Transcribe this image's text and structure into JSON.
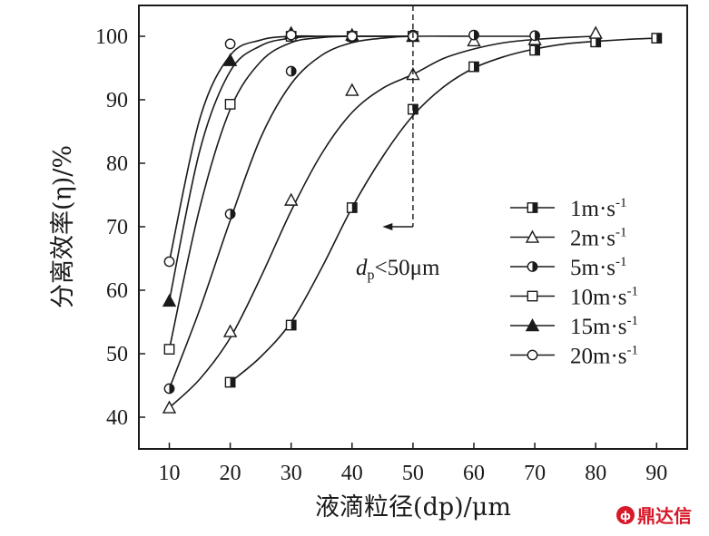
{
  "chart_data": {
    "type": "line",
    "xlabel": "液滴粒径(dp)/μm",
    "ylabel": "分离效率(η)/%",
    "xlim": [
      5,
      95
    ],
    "ylim": [
      35,
      105
    ],
    "xticks": [
      10,
      20,
      30,
      40,
      50,
      60,
      70,
      80,
      90
    ],
    "yticks": [
      40,
      50,
      60,
      70,
      80,
      90,
      100
    ],
    "grid": false,
    "legend_position": "right",
    "series": [
      {
        "name": "1m·s-1",
        "name_main": "1m·s",
        "name_sup": "-1",
        "marker": "half-square",
        "x": [
          20,
          30,
          40,
          50,
          60,
          70,
          80,
          90
        ],
        "y": [
          45.5,
          54.5,
          73,
          88.5,
          95.2,
          97.8,
          99.1,
          99.7
        ]
      },
      {
        "name": "2m·s-1",
        "name_main": "2m·s",
        "name_sup": "-1",
        "marker": "open-triangle",
        "x": [
          10,
          20,
          30,
          40,
          50,
          60,
          70,
          80
        ],
        "y": [
          41.5,
          53.5,
          74.2,
          91.5,
          94,
          99.3,
          99.5,
          100.5
        ]
      },
      {
        "name": "5m·s-1",
        "name_main": "5m·s",
        "name_sup": "-1",
        "marker": "half-circle",
        "x": [
          10,
          20,
          30,
          40,
          50,
          60,
          70
        ],
        "y": [
          44.5,
          72,
          94.5,
          99.8,
          100.2,
          100.2,
          100.1
        ]
      },
      {
        "name": "10m·s-1",
        "name_main": "10m·s",
        "name_sup": "-1",
        "marker": "open-square",
        "x": [
          10,
          20,
          30,
          40,
          50
        ],
        "y": [
          50.7,
          89.3,
          100,
          100,
          100
        ]
      },
      {
        "name": "15m·s-1",
        "name_main": "15m·s",
        "name_sup": "-1",
        "marker": "filled-triangle",
        "x": [
          10,
          20,
          30,
          40,
          50
        ],
        "y": [
          58.3,
          96.2,
          100.5,
          100.2,
          100
        ]
      },
      {
        "name": "20m·s-1",
        "name_main": "20m·s",
        "name_sup": "-1",
        "marker": "open-circle",
        "x": [
          10,
          20,
          30,
          40,
          50
        ],
        "y": [
          64.5,
          98.8,
          100.2,
          100,
          100
        ]
      }
    ],
    "curves": [
      {
        "series": "1m·s-1",
        "x": [
          20,
          25,
          30,
          35,
          40,
          45,
          50,
          55,
          60,
          65,
          70,
          75,
          80,
          85,
          90
        ],
        "y": [
          45.5,
          49.5,
          55,
          63.5,
          73,
          81,
          87.5,
          92,
          95,
          96.8,
          98,
          98.8,
          99.2,
          99.5,
          99.7
        ]
      },
      {
        "series": "2m·s-1",
        "x": [
          10,
          15,
          20,
          25,
          30,
          35,
          40,
          45,
          50,
          55,
          60,
          65,
          70,
          75,
          80
        ],
        "y": [
          41.5,
          46,
          52.5,
          62,
          72.5,
          81.5,
          88,
          91.8,
          94,
          96.5,
          98,
          99,
          99.5,
          99.8,
          100
        ]
      },
      {
        "series": "5m·s-1",
        "x": [
          10,
          15,
          20,
          25,
          30,
          35,
          40,
          45,
          50,
          60,
          70
        ],
        "y": [
          44.5,
          57,
          71,
          84,
          92.5,
          97,
          99,
          99.7,
          100,
          100,
          100
        ]
      },
      {
        "series": "10m·s-1",
        "x": [
          10,
          15,
          20,
          25,
          30,
          35,
          40,
          50
        ],
        "y": [
          50.7,
          73,
          88.5,
          96,
          99,
          99.8,
          100,
          100
        ]
      },
      {
        "series": "15m·s-1",
        "x": [
          10,
          15,
          20,
          25,
          30,
          35,
          40,
          50
        ],
        "y": [
          58.3,
          82,
          94.5,
          98.5,
          99.7,
          100,
          100,
          100
        ]
      },
      {
        "series": "20m·s-1",
        "x": [
          10,
          15,
          20,
          25,
          30,
          35,
          40,
          50
        ],
        "y": [
          64.5,
          87,
          97,
          99.4,
          100,
          100,
          100,
          100
        ]
      }
    ],
    "annotation": {
      "text_main": "d",
      "text_sub": "p",
      "text_rest": "<50μm",
      "threshold_x": 50,
      "arrow_to_x": 45,
      "arrow_y": 70
    }
  },
  "watermark": {
    "text": "鼎达信"
  }
}
